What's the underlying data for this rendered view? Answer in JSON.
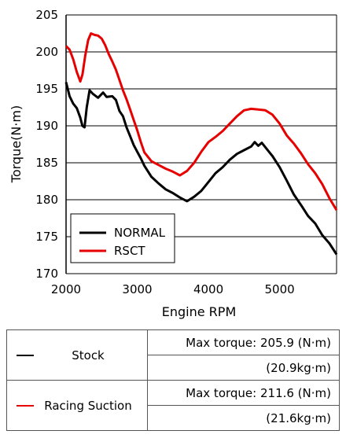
{
  "chart_data": {
    "type": "line",
    "xlabel": "Engine RPM",
    "ylabel": "Torque(N·m)",
    "xlim": [
      2000,
      5800
    ],
    "ylim": [
      170,
      205
    ],
    "xticks": [
      2000,
      3000,
      4000,
      5000
    ],
    "yticks": [
      170,
      175,
      180,
      185,
      190,
      195,
      200,
      205
    ],
    "grid": "horizontal",
    "legend_position": "bottom-left",
    "series": [
      {
        "name": "NORMAL",
        "color": "#000000",
        "points": [
          [
            2000,
            195.9
          ],
          [
            2050,
            194.0
          ],
          [
            2100,
            193.0
          ],
          [
            2150,
            192.4
          ],
          [
            2200,
            191.1
          ],
          [
            2230,
            190.0
          ],
          [
            2260,
            189.8
          ],
          [
            2290,
            192.5
          ],
          [
            2330,
            194.8
          ],
          [
            2380,
            194.3
          ],
          [
            2450,
            193.8
          ],
          [
            2520,
            194.5
          ],
          [
            2570,
            193.9
          ],
          [
            2650,
            194.0
          ],
          [
            2700,
            193.5
          ],
          [
            2750,
            192.0
          ],
          [
            2800,
            191.3
          ],
          [
            2850,
            189.8
          ],
          [
            2900,
            188.6
          ],
          [
            2950,
            187.4
          ],
          [
            3000,
            186.5
          ],
          [
            3050,
            185.6
          ],
          [
            3100,
            184.6
          ],
          [
            3200,
            183.1
          ],
          [
            3300,
            182.2
          ],
          [
            3400,
            181.4
          ],
          [
            3500,
            180.9
          ],
          [
            3600,
            180.3
          ],
          [
            3700,
            179.8
          ],
          [
            3800,
            180.4
          ],
          [
            3900,
            181.2
          ],
          [
            4000,
            182.4
          ],
          [
            4100,
            183.6
          ],
          [
            4200,
            184.4
          ],
          [
            4300,
            185.4
          ],
          [
            4400,
            186.2
          ],
          [
            4500,
            186.7
          ],
          [
            4600,
            187.2
          ],
          [
            4650,
            187.8
          ],
          [
            4700,
            187.3
          ],
          [
            4750,
            187.7
          ],
          [
            4800,
            187.1
          ],
          [
            4850,
            186.5
          ],
          [
            4900,
            185.9
          ],
          [
            5000,
            184.4
          ],
          [
            5100,
            182.6
          ],
          [
            5200,
            180.7
          ],
          [
            5300,
            179.3
          ],
          [
            5400,
            177.8
          ],
          [
            5500,
            176.8
          ],
          [
            5600,
            175.2
          ],
          [
            5700,
            174.1
          ],
          [
            5800,
            172.6
          ]
        ]
      },
      {
        "name": "RSCT",
        "color": "#e60000",
        "points": [
          [
            2000,
            200.8
          ],
          [
            2050,
            200.3
          ],
          [
            2100,
            199.0
          ],
          [
            2150,
            197.3
          ],
          [
            2200,
            196.0
          ],
          [
            2230,
            196.9
          ],
          [
            2270,
            199.5
          ],
          [
            2310,
            201.6
          ],
          [
            2350,
            202.5
          ],
          [
            2400,
            202.3
          ],
          [
            2450,
            202.2
          ],
          [
            2500,
            201.8
          ],
          [
            2550,
            200.9
          ],
          [
            2600,
            199.7
          ],
          [
            2650,
            198.7
          ],
          [
            2700,
            197.6
          ],
          [
            2750,
            196.2
          ],
          [
            2800,
            194.8
          ],
          [
            2850,
            193.6
          ],
          [
            2900,
            192.2
          ],
          [
            2950,
            190.8
          ],
          [
            3000,
            189.4
          ],
          [
            3050,
            187.8
          ],
          [
            3100,
            186.4
          ],
          [
            3200,
            185.2
          ],
          [
            3300,
            184.7
          ],
          [
            3400,
            184.2
          ],
          [
            3500,
            183.8
          ],
          [
            3600,
            183.3
          ],
          [
            3700,
            183.9
          ],
          [
            3800,
            185.0
          ],
          [
            3900,
            186.5
          ],
          [
            4000,
            187.8
          ],
          [
            4100,
            188.5
          ],
          [
            4200,
            189.3
          ],
          [
            4300,
            190.3
          ],
          [
            4400,
            191.3
          ],
          [
            4500,
            192.1
          ],
          [
            4600,
            192.3
          ],
          [
            4700,
            192.2
          ],
          [
            4800,
            192.1
          ],
          [
            4900,
            191.5
          ],
          [
            5000,
            190.3
          ],
          [
            5100,
            188.7
          ],
          [
            5200,
            187.6
          ],
          [
            5300,
            186.3
          ],
          [
            5400,
            184.8
          ],
          [
            5500,
            183.6
          ],
          [
            5600,
            182.1
          ],
          [
            5700,
            180.2
          ],
          [
            5800,
            178.6
          ]
        ]
      }
    ]
  },
  "legend": {
    "items": [
      {
        "label": "NORMAL",
        "color": "#000000"
      },
      {
        "label": "RSCT",
        "color": "#e60000"
      }
    ]
  },
  "summary_table": {
    "rows": [
      {
        "label": "Stock",
        "color": "#000000",
        "max_torque_nm": "Max torque: 205.9 (N·m)",
        "max_torque_kgm": "(20.9kg·m)"
      },
      {
        "label": "Racing Suction",
        "color": "#e60000",
        "max_torque_nm": "Max torque: 211.6 (N·m)",
        "max_torque_kgm": "(21.6kg·m)"
      }
    ]
  }
}
